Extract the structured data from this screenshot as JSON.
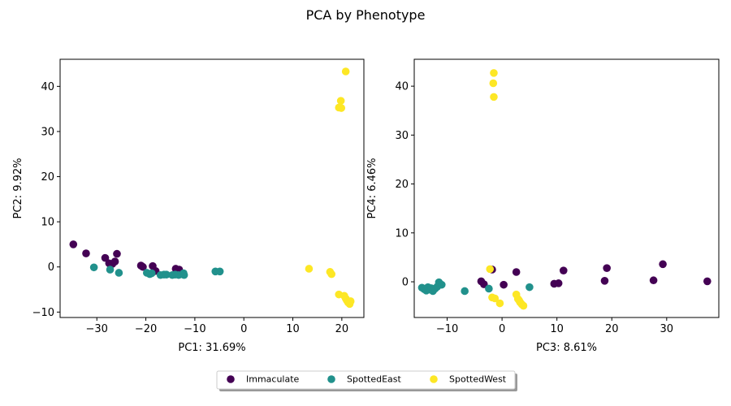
{
  "figure_title": "PCA by Phenotype",
  "colors": {
    "Immaculate": "#440154",
    "SpottedEast": "#21918c",
    "SpottedWest": "#fde725"
  },
  "legend": {
    "placement": "bottom-center",
    "entries": [
      "Immaculate",
      "SpottedEast",
      "SpottedWest"
    ]
  },
  "chart_data": [
    {
      "type": "scatter",
      "xlabel": "PC1: 31.69%",
      "ylabel": "PC2: 9.92%",
      "xlim": [
        -37.5,
        24.5
      ],
      "ylim": [
        -11.2,
        46.0
      ],
      "xticks": [
        -30,
        -20,
        -10,
        0,
        10,
        20
      ],
      "yticks": [
        -10,
        0,
        10,
        20,
        30,
        40
      ],
      "series": [
        {
          "name": "Immaculate",
          "points": [
            [
              -34.8,
              5.0
            ],
            [
              -32.2,
              3.0
            ],
            [
              -28.3,
              2.0
            ],
            [
              -27.5,
              0.8
            ],
            [
              -26.8,
              0.7
            ],
            [
              -26.3,
              1.2
            ],
            [
              -25.9,
              2.9
            ],
            [
              -21.0,
              0.3
            ],
            [
              -20.6,
              0.0
            ],
            [
              -18.6,
              0.2
            ],
            [
              -18.0,
              -0.9
            ],
            [
              -13.9,
              -0.4
            ],
            [
              -13.2,
              -0.6
            ]
          ]
        },
        {
          "name": "SpottedEast",
          "points": [
            [
              -30.6,
              -0.1
            ],
            [
              -27.3,
              -0.6
            ],
            [
              -25.5,
              -1.3
            ],
            [
              -19.8,
              -1.3
            ],
            [
              -19.2,
              -1.6
            ],
            [
              -18.8,
              -1.4
            ],
            [
              -17.0,
              -1.8
            ],
            [
              -16.3,
              -1.7
            ],
            [
              -15.8,
              -1.7
            ],
            [
              -14.6,
              -1.8
            ],
            [
              -14.0,
              -1.7
            ],
            [
              -13.3,
              -1.8
            ],
            [
              -12.3,
              -1.4
            ],
            [
              -12.2,
              -1.8
            ],
            [
              -5.8,
              -1.0
            ],
            [
              -4.9,
              -1.0
            ]
          ]
        },
        {
          "name": "SpottedWest",
          "points": [
            [
              13.3,
              -0.4
            ],
            [
              17.6,
              -1.1
            ],
            [
              17.9,
              -1.6
            ],
            [
              19.4,
              35.3
            ],
            [
              19.8,
              36.8
            ],
            [
              19.9,
              35.2
            ],
            [
              20.8,
              43.3
            ],
            [
              19.4,
              -6.1
            ],
            [
              20.5,
              -6.4
            ],
            [
              20.8,
              -7.0
            ],
            [
              21.0,
              -7.4
            ],
            [
              21.3,
              -7.9
            ],
            [
              21.6,
              -8.2
            ],
            [
              21.8,
              -7.6
            ]
          ]
        }
      ]
    },
    {
      "type": "scatter",
      "xlabel": "PC3: 8.61%",
      "ylabel": "PC4: 6.46%",
      "xlim": [
        -16.0,
        39.5
      ],
      "ylim": [
        -7.3,
        45.5
      ],
      "xticks": [
        -10,
        0,
        10,
        20,
        30
      ],
      "yticks": [
        0,
        10,
        20,
        30,
        40
      ],
      "series": [
        {
          "name": "Immaculate",
          "points": [
            [
              -3.8,
              0.1
            ],
            [
              -3.3,
              -0.5
            ],
            [
              -1.8,
              2.5
            ],
            [
              0.3,
              -0.6
            ],
            [
              2.6,
              2.0
            ],
            [
              9.5,
              -0.4
            ],
            [
              10.3,
              -0.3
            ],
            [
              11.2,
              2.3
            ],
            [
              18.7,
              0.2
            ],
            [
              19.1,
              2.8
            ],
            [
              27.6,
              0.3
            ],
            [
              29.3,
              3.6
            ],
            [
              37.4,
              0.1
            ]
          ]
        },
        {
          "name": "SpottedEast",
          "points": [
            [
              -14.6,
              -1.2
            ],
            [
              -14.2,
              -1.5
            ],
            [
              -13.8,
              -1.8
            ],
            [
              -13.5,
              -1.1
            ],
            [
              -13.1,
              -1.6
            ],
            [
              -12.9,
              -1.3
            ],
            [
              -12.6,
              -1.9
            ],
            [
              -12.2,
              -1.4
            ],
            [
              -11.8,
              -1.0
            ],
            [
              -11.5,
              -0.1
            ],
            [
              -11.0,
              -0.6
            ],
            [
              -6.8,
              -1.9
            ],
            [
              -2.4,
              -1.4
            ],
            [
              5.0,
              -1.1
            ]
          ]
        },
        {
          "name": "SpottedWest",
          "points": [
            [
              -1.5,
              42.7
            ],
            [
              -1.6,
              40.6
            ],
            [
              -1.5,
              37.8
            ],
            [
              -2.2,
              2.6
            ],
            [
              -1.8,
              -3.2
            ],
            [
              -1.3,
              -3.4
            ],
            [
              -0.4,
              -4.4
            ],
            [
              2.6,
              -2.6
            ],
            [
              2.9,
              -3.5
            ],
            [
              3.1,
              -3.8
            ],
            [
              3.3,
              -4.2
            ],
            [
              3.6,
              -4.6
            ],
            [
              3.9,
              -4.9
            ]
          ]
        }
      ]
    }
  ]
}
